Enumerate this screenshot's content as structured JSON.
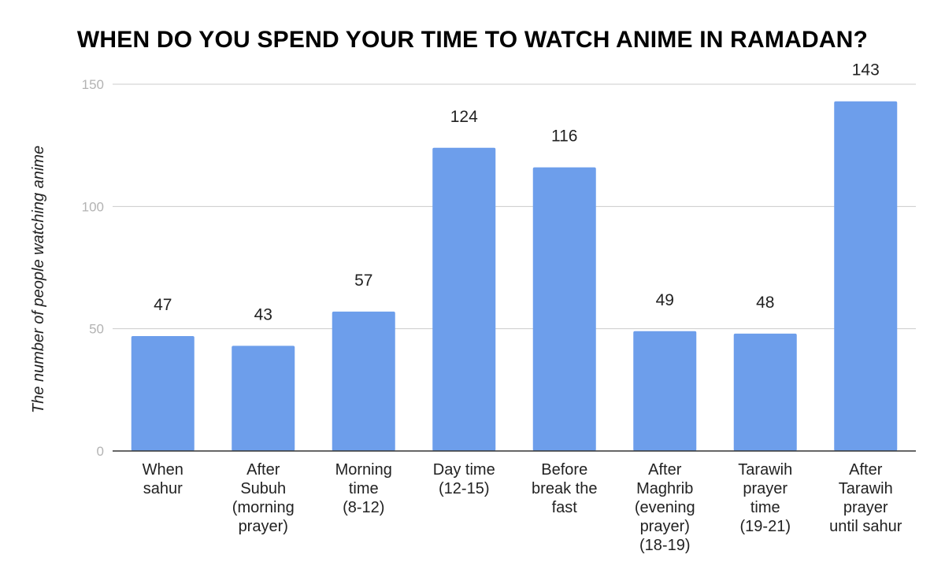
{
  "chart_data": {
    "type": "bar",
    "title": "WHEN DO YOU SPEND YOUR TIME TO WATCH ANIME IN RAMADAN?",
    "xlabel": "",
    "ylabel": "The number of people watching anime",
    "ylim": [
      0,
      150
    ],
    "yticks": [
      "0",
      "50",
      "100",
      "150"
    ],
    "grid": true,
    "bar_color": "#6d9eeb",
    "categories": [
      [
        "When",
        "sahur"
      ],
      [
        "After",
        "Subuh",
        "(morning",
        "prayer)"
      ],
      [
        "Morning",
        "time",
        "(8-12)"
      ],
      [
        "Day time",
        "(12-15)"
      ],
      [
        "Before",
        "break the",
        "fast"
      ],
      [
        "After",
        "Maghrib",
        "(evening",
        "prayer)",
        "(18-19)"
      ],
      [
        "Tarawih",
        "prayer",
        "time",
        "(19-21)"
      ],
      [
        "After",
        "Tarawih",
        "prayer",
        "until sahur"
      ]
    ],
    "values": [
      47,
      43,
      57,
      124,
      116,
      49,
      48,
      143
    ]
  }
}
